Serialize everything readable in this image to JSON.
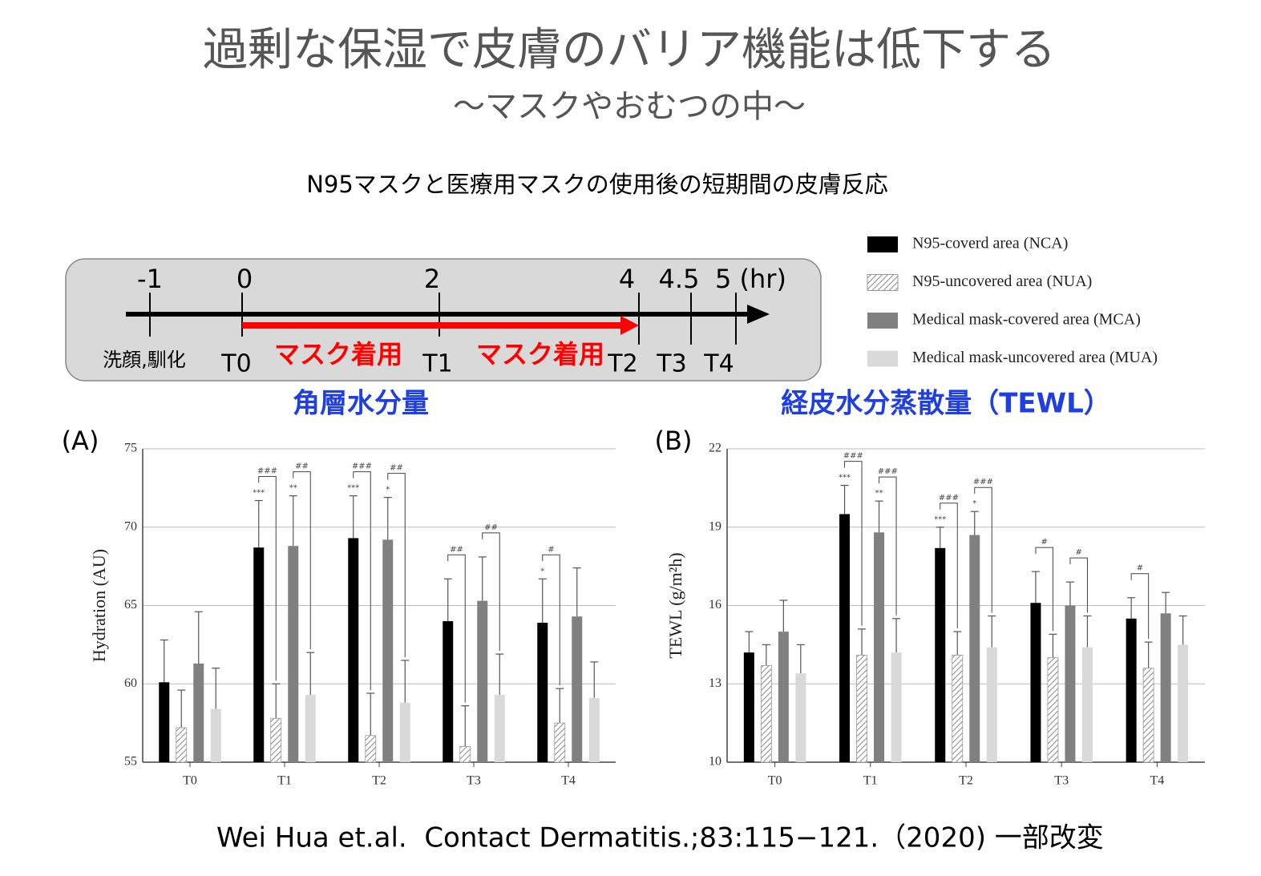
{
  "title": "過剰な保湿で皮膚のバリア機能は低下する",
  "subtitle": "～マスクやおむつの中～",
  "heading": "N95マスクと医療用マスクの使用後の短期間の皮膚反応",
  "timeline": {
    "hours": [
      "-1",
      "0",
      "2",
      "4",
      "4.5",
      "5 (hr)"
    ],
    "points": [
      "洗顔,馴化",
      "T0",
      "T1",
      "T2",
      "T3",
      "T4"
    ],
    "phases": [
      "マスク着用",
      "マスク着用"
    ]
  },
  "citation": "Wei Hua et.al.  Contact Dermatitis.;83:115−121.（2020) 一部改変",
  "chart_data": [
    {
      "type": "bar",
      "title": "角層水分量",
      "panel": "(A)",
      "y_label": "Hydration (AU)",
      "categories": [
        "T0",
        "T1",
        "T2",
        "T3",
        "T4"
      ],
      "ylim": [
        55,
        75
      ],
      "yticks": [
        55,
        60,
        65,
        70,
        75
      ],
      "grid": true,
      "series": [
        {
          "name": "N95-coverd area (NCA)",
          "color": "#000000",
          "values": [
            60.1,
            68.7,
            69.3,
            64.0,
            63.9
          ],
          "errors": [
            2.7,
            3.0,
            2.7,
            2.7,
            2.8
          ]
        },
        {
          "name": "N95-uncovered area (NUA)",
          "color": "#999999",
          "pattern": "hatch",
          "values": [
            57.2,
            57.8,
            56.7,
            56.0,
            57.5
          ],
          "errors": [
            2.4,
            2.2,
            2.7,
            2.6,
            2.2
          ]
        },
        {
          "name": "Medical mask-covered area (MCA)",
          "color": "#808080",
          "values": [
            61.3,
            68.8,
            69.2,
            65.3,
            64.3
          ],
          "errors": [
            3.3,
            3.2,
            2.7,
            2.8,
            3.1
          ]
        },
        {
          "name": "Medical mask-uncovered area (MUA)",
          "color": "#d9d9d9",
          "values": [
            58.4,
            59.3,
            58.8,
            59.3,
            59.1
          ],
          "errors": [
            2.6,
            2.7,
            2.7,
            2.6,
            2.3
          ]
        }
      ],
      "annotations": [
        {
          "text": "***",
          "category": 1,
          "series": [
            0
          ]
        },
        {
          "text": "**",
          "category": 1,
          "series": [
            2
          ]
        },
        {
          "text": "###",
          "category": 1,
          "series": [
            0,
            1
          ]
        },
        {
          "text": "##",
          "category": 1,
          "series": [
            2,
            3
          ]
        },
        {
          "text": "***",
          "category": 2,
          "series": [
            0
          ]
        },
        {
          "text": "*",
          "category": 2,
          "series": [
            2
          ]
        },
        {
          "text": "###",
          "category": 2,
          "series": [
            0,
            1
          ]
        },
        {
          "text": "##",
          "category": 2,
          "series": [
            2,
            3
          ]
        },
        {
          "text": "##",
          "category": 3,
          "series": [
            0,
            1
          ]
        },
        {
          "text": "##",
          "category": 3,
          "series": [
            2,
            3
          ]
        },
        {
          "text": "*",
          "category": 4,
          "series": [
            0
          ]
        },
        {
          "text": "#",
          "category": 4,
          "series": [
            0,
            1
          ]
        }
      ]
    },
    {
      "type": "bar",
      "title": "経皮水分蒸散量（TEWL）",
      "panel": "(B)",
      "y_label": "TEWL (g/m²h)",
      "categories": [
        "T0",
        "T1",
        "T2",
        "T3",
        "T4"
      ],
      "ylim": [
        10,
        22
      ],
      "yticks": [
        10,
        13,
        16,
        19,
        22
      ],
      "grid": true,
      "series": [
        {
          "color": "#000000",
          "values": [
            14.2,
            19.5,
            18.2,
            16.1,
            15.5
          ],
          "errors": [
            0.8,
            1.1,
            0.8,
            1.2,
            0.8
          ]
        },
        {
          "color": "#999999",
          "pattern": "hatch",
          "values": [
            13.7,
            14.1,
            14.1,
            14.0,
            13.6
          ],
          "errors": [
            0.8,
            1.0,
            0.9,
            0.9,
            1.0
          ]
        },
        {
          "color": "#808080",
          "values": [
            15.0,
            18.8,
            18.7,
            16.0,
            15.7
          ],
          "errors": [
            1.2,
            1.2,
            0.9,
            0.9,
            0.8
          ]
        },
        {
          "color": "#d9d9d9",
          "values": [
            13.4,
            14.2,
            14.4,
            14.4,
            14.5
          ],
          "errors": [
            1.1,
            1.3,
            1.2,
            1.2,
            1.1
          ]
        }
      ],
      "annotations": [
        {
          "text": "***",
          "category": 1,
          "series": [
            0
          ]
        },
        {
          "text": "**",
          "category": 1,
          "series": [
            2
          ]
        },
        {
          "text": "###",
          "category": 1,
          "series": [
            0,
            1
          ]
        },
        {
          "text": "###",
          "category": 1,
          "series": [
            2,
            3
          ]
        },
        {
          "text": "***",
          "category": 2,
          "series": [
            0
          ]
        },
        {
          "text": "*",
          "category": 2,
          "series": [
            2
          ]
        },
        {
          "text": "###",
          "category": 2,
          "series": [
            0,
            1
          ]
        },
        {
          "text": "###",
          "category": 2,
          "series": [
            2,
            3
          ]
        },
        {
          "text": "#",
          "category": 3,
          "series": [
            0,
            1
          ]
        },
        {
          "text": "#",
          "category": 3,
          "series": [
            2,
            3
          ]
        },
        {
          "text": "#",
          "category": 4,
          "series": [
            0,
            1
          ]
        }
      ]
    }
  ]
}
